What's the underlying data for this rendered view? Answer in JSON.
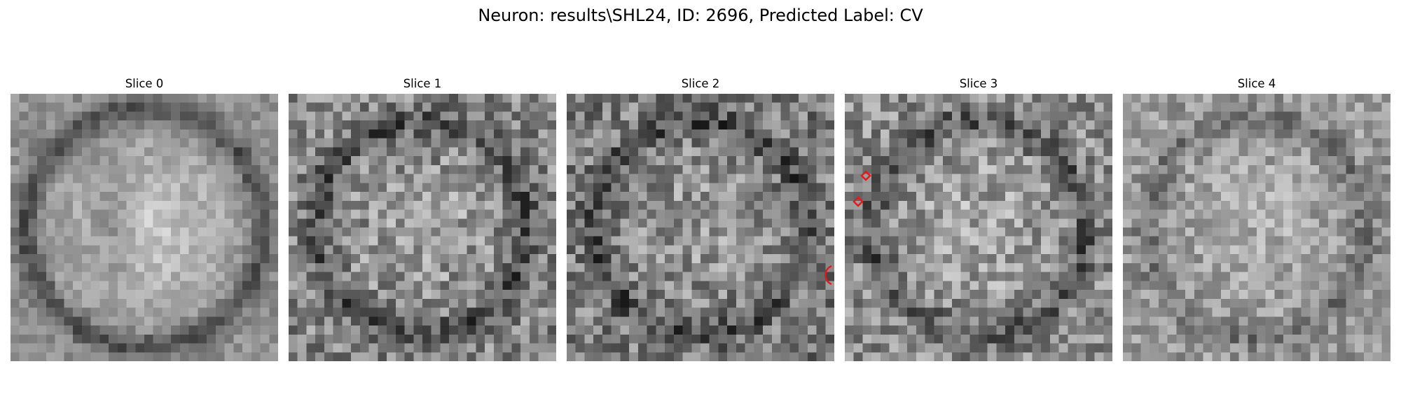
{
  "figure": {
    "suptitle": "Neuron: results\\SHL24, ID: 2696, Predicted Label: CV"
  },
  "slices": [
    {
      "title": "Slice 0",
      "mean_brightness": 0.68,
      "texture": "smooth",
      "pattern": "bright-blob",
      "markers": []
    },
    {
      "title": "Slice 1",
      "mean_brightness": 0.52,
      "texture": "noisy",
      "pattern": "ring",
      "markers": []
    },
    {
      "title": "Slice 2",
      "mean_brightness": 0.5,
      "texture": "noisy",
      "pattern": "ring-dark-corners",
      "markers": [
        {
          "shape": "arc",
          "color": "#e41a1c"
        }
      ]
    },
    {
      "title": "Slice 3",
      "mean_brightness": 0.55,
      "texture": "noisy",
      "pattern": "ring",
      "markers": [
        {
          "shape": "diamond",
          "color": "#e41a1c"
        },
        {
          "shape": "diamond",
          "color": "#e41a1c"
        }
      ]
    },
    {
      "title": "Slice 4",
      "mean_brightness": 0.6,
      "texture": "medium",
      "pattern": "faint-ring",
      "markers": []
    }
  ]
}
